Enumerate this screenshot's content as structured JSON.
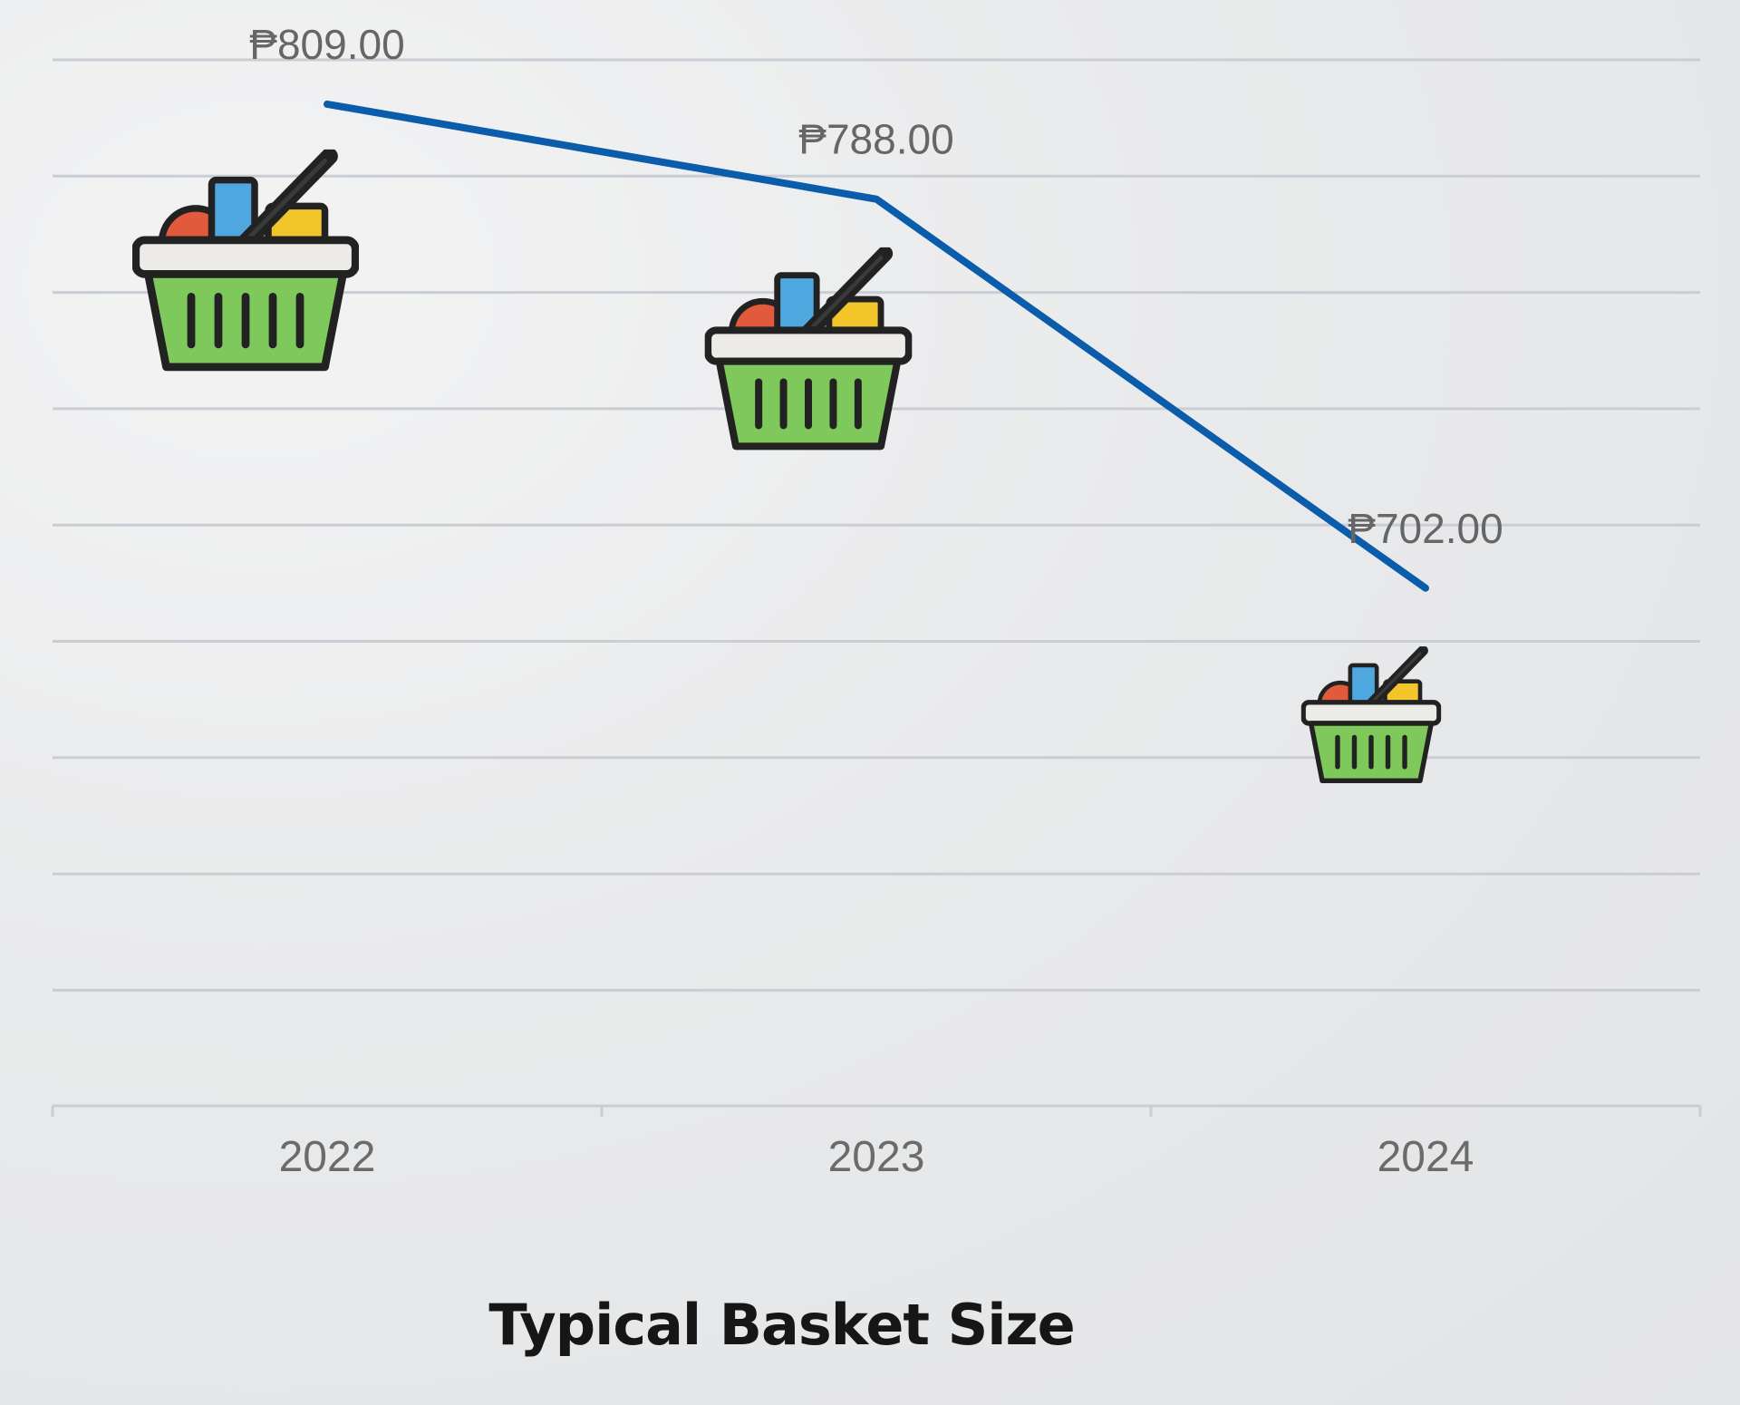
{
  "chart_data": {
    "type": "line",
    "title": "Typical Basket Size",
    "categories": [
      "2022",
      "2023",
      "2024"
    ],
    "series": [
      {
        "values": [
          809,
          788,
          702
        ],
        "labels": [
          "₱809.00",
          "₱788.00",
          "₱702.00"
        ],
        "color": "#0b5cab"
      }
    ],
    "ylim": [
      630,
      820
    ],
    "grid": true,
    "legend": "none",
    "marker_icon": "shopping-basket-icon"
  }
}
